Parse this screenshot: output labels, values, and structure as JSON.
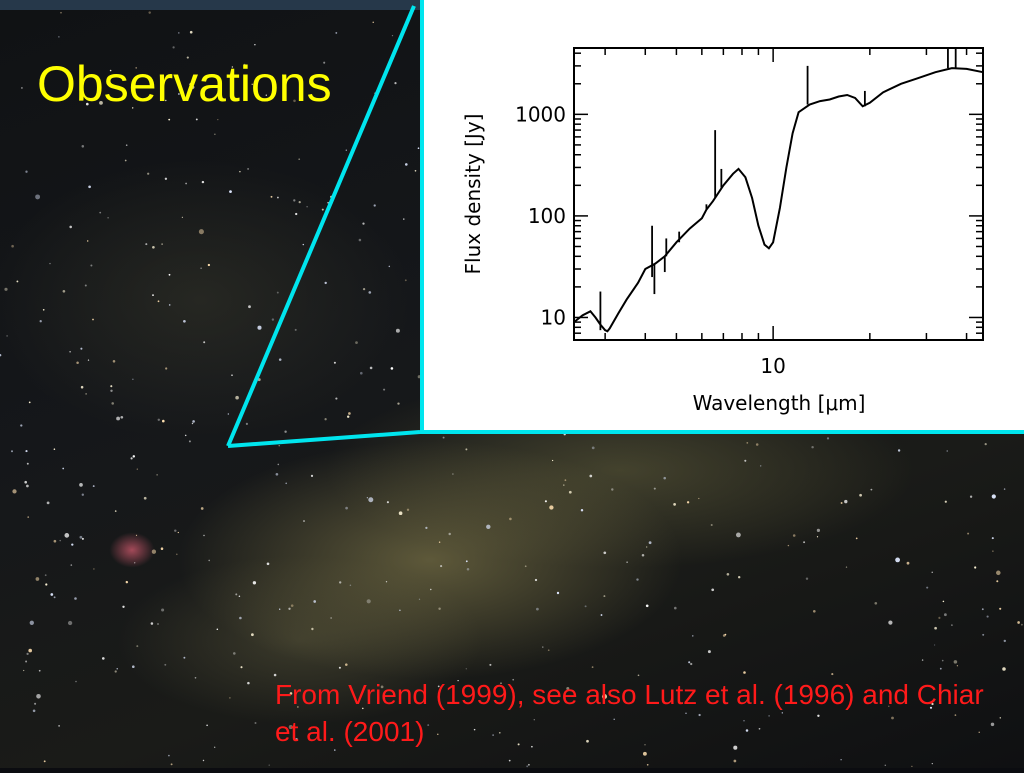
{
  "slide": {
    "title": "Observations",
    "credit": "From Vriend (1999), see also Lutz et al. (1996) and Chiar et al. (2001)"
  },
  "colors": {
    "title": "#ffff00",
    "callout": "#00e5ee",
    "credit": "#ff1a1a",
    "spectrum": "#000000"
  },
  "chart_data": {
    "type": "line",
    "title": "",
    "xlabel": "Wavelength [μm]",
    "ylabel": "Flux density [Jy]",
    "x_scale": "log",
    "y_scale": "log",
    "xlim": [
      2.4,
      45
    ],
    "ylim": [
      6,
      4500
    ],
    "x_ticks": [
      {
        "value": 10,
        "label": "10"
      }
    ],
    "y_ticks": [
      {
        "value": 10,
        "label": "10"
      },
      {
        "value": 100,
        "label": "100"
      },
      {
        "value": 1000,
        "label": "1000"
      }
    ],
    "grid": false,
    "legend": "none",
    "series": [
      {
        "x": [
          2.4,
          2.55,
          2.7,
          2.8,
          2.9,
          3.0,
          3.05,
          3.1,
          3.3,
          3.5,
          3.8,
          4.0,
          4.3,
          4.6,
          5.0,
          5.5,
          6.0,
          6.2,
          6.5,
          7.0,
          7.5,
          7.8,
          8.2,
          8.6,
          9.0,
          9.4,
          9.7,
          10.0,
          10.5,
          11.0,
          11.5,
          12.0,
          13.0,
          14.0,
          15.0,
          16.0,
          17.0,
          18.0,
          19.0,
          20.0,
          22.0,
          25.0,
          28.0,
          32.0,
          36.0,
          40.0,
          45.0
        ],
        "y": [
          9,
          10.5,
          11.5,
          10,
          8.5,
          7.5,
          7.3,
          7.8,
          11,
          15,
          22,
          30,
          34,
          40,
          55,
          75,
          95,
          115,
          140,
          200,
          260,
          290,
          240,
          150,
          80,
          52,
          48,
          55,
          120,
          300,
          650,
          1050,
          1250,
          1350,
          1400,
          1500,
          1550,
          1450,
          1200,
          1300,
          1650,
          2000,
          2250,
          2600,
          2850,
          2800,
          2600
        ]
      }
    ],
    "absorption_features": [
      {
        "x": 2.9,
        "y_low": 7.5,
        "y_high": 18
      },
      {
        "x": 4.2,
        "y_low": 25,
        "y_high": 80
      },
      {
        "x": 4.27,
        "y_low": 17,
        "y_high": 34
      },
      {
        "x": 4.6,
        "y_low": 28,
        "y_high": 40
      },
      {
        "x": 4.65,
        "y_low": 40,
        "y_high": 60
      },
      {
        "x": 5.1,
        "y_low": 55,
        "y_high": 70
      },
      {
        "x": 6.2,
        "y_low": 115,
        "y_high": 130
      },
      {
        "x": 6.6,
        "y_low": 150,
        "y_high": 700
      },
      {
        "x": 6.9,
        "y_low": 190,
        "y_high": 290
      },
      {
        "x": 12.8,
        "y_low": 1250,
        "y_high": 3000
      },
      {
        "x": 19.3,
        "y_low": 1200,
        "y_high": 1700
      },
      {
        "x": 35.0,
        "y_low": 2850,
        "y_high": 4500
      },
      {
        "x": 37.0,
        "y_low": 2850,
        "y_high": 4500
      }
    ]
  }
}
